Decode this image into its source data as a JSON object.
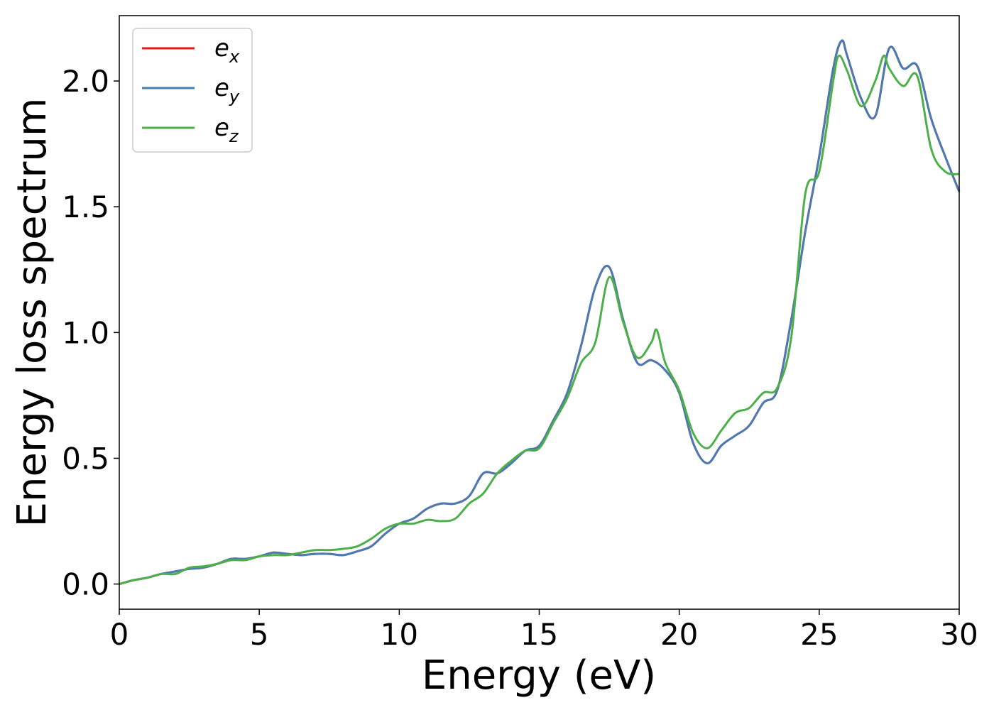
{
  "chart_data": {
    "type": "line",
    "title": "",
    "xlabel": "Energy (eV)",
    "ylabel": "Energy loss spectrum",
    "xlim": [
      0,
      30
    ],
    "ylim": [
      -0.1,
      2.26
    ],
    "xticks": [
      0,
      5,
      10,
      15,
      20,
      25,
      30
    ],
    "xtick_labels": [
      "0",
      "5",
      "10",
      "15",
      "20",
      "25",
      "30"
    ],
    "yticks": [
      0.0,
      0.5,
      1.0,
      1.5,
      2.0
    ],
    "ytick_labels": [
      "0.0",
      "0.5",
      "1.0",
      "1.5",
      "2.0"
    ],
    "grid": false,
    "legend_position": "top-left",
    "series": [
      {
        "name": "e_x",
        "legend_base": "e",
        "legend_sub": "x",
        "color": "#e41a1c",
        "x": [
          0,
          0.5,
          1,
          1.5,
          2,
          2.5,
          3,
          3.5,
          4,
          4.5,
          5,
          5.5,
          6,
          6.5,
          7,
          7.5,
          8,
          8.5,
          9,
          9.5,
          10,
          10.5,
          11,
          11.5,
          12,
          12.5,
          13,
          13.5,
          14,
          14.5,
          15,
          15.5,
          16,
          16.5,
          17,
          17.5,
          18,
          18.5,
          19,
          19.5,
          20,
          20.5,
          21,
          21.5,
          22,
          22.5,
          23,
          23.5,
          24,
          24.5,
          25,
          25.5,
          25.8,
          26,
          26.5,
          27,
          27.5,
          28,
          28.5,
          29,
          29.5,
          30
        ],
        "y": [
          0.0,
          0.015,
          0.025,
          0.04,
          0.05,
          0.06,
          0.065,
          0.08,
          0.1,
          0.1,
          0.11,
          0.125,
          0.12,
          0.115,
          0.12,
          0.12,
          0.115,
          0.13,
          0.15,
          0.2,
          0.24,
          0.26,
          0.3,
          0.32,
          0.32,
          0.35,
          0.44,
          0.44,
          0.48,
          0.53,
          0.55,
          0.65,
          0.76,
          0.95,
          1.18,
          1.26,
          1.05,
          0.88,
          0.89,
          0.85,
          0.76,
          0.56,
          0.48,
          0.55,
          0.59,
          0.63,
          0.72,
          0.77,
          1.05,
          1.4,
          1.7,
          2.05,
          2.16,
          2.1,
          1.93,
          1.86,
          2.13,
          2.05,
          2.06,
          1.85,
          1.7,
          1.56
        ]
      },
      {
        "name": "e_y",
        "legend_base": "e",
        "legend_sub": "y",
        "color": "#4a7bb3",
        "x": [
          0,
          0.5,
          1,
          1.5,
          2,
          2.5,
          3,
          3.5,
          4,
          4.5,
          5,
          5.5,
          6,
          6.5,
          7,
          7.5,
          8,
          8.5,
          9,
          9.5,
          10,
          10.5,
          11,
          11.5,
          12,
          12.5,
          13,
          13.5,
          14,
          14.5,
          15,
          15.5,
          16,
          16.5,
          17,
          17.5,
          18,
          18.5,
          19,
          19.5,
          20,
          20.5,
          21,
          21.5,
          22,
          22.5,
          23,
          23.5,
          24,
          24.5,
          25,
          25.5,
          25.8,
          26,
          26.5,
          27,
          27.5,
          28,
          28.5,
          29,
          29.5,
          30
        ],
        "y": [
          0.0,
          0.015,
          0.025,
          0.04,
          0.05,
          0.06,
          0.065,
          0.08,
          0.1,
          0.1,
          0.11,
          0.125,
          0.12,
          0.115,
          0.12,
          0.12,
          0.115,
          0.13,
          0.15,
          0.2,
          0.24,
          0.26,
          0.3,
          0.32,
          0.32,
          0.35,
          0.44,
          0.44,
          0.48,
          0.53,
          0.55,
          0.65,
          0.76,
          0.95,
          1.18,
          1.26,
          1.05,
          0.88,
          0.89,
          0.85,
          0.76,
          0.56,
          0.48,
          0.55,
          0.59,
          0.63,
          0.72,
          0.77,
          1.05,
          1.4,
          1.7,
          2.05,
          2.16,
          2.1,
          1.93,
          1.86,
          2.13,
          2.05,
          2.06,
          1.85,
          1.7,
          1.56
        ]
      },
      {
        "name": "e_z",
        "legend_base": "e",
        "legend_sub": "z",
        "color": "#4daf4a",
        "x": [
          0,
          0.5,
          1,
          1.5,
          2,
          2.5,
          3,
          3.5,
          4,
          4.5,
          5,
          5.5,
          6,
          6.5,
          7,
          7.5,
          8,
          8.5,
          9,
          9.5,
          10,
          10.5,
          11,
          11.5,
          12,
          12.5,
          13,
          13.5,
          14,
          14.5,
          15,
          15.5,
          16,
          16.5,
          17,
          17.5,
          18,
          18.5,
          19,
          19.2,
          19.5,
          20,
          20.5,
          21,
          21.5,
          22,
          22.5,
          23,
          23.5,
          24,
          24.5,
          25,
          25.5,
          25.7,
          26,
          26.5,
          27,
          27.3,
          27.5,
          28,
          28.5,
          29,
          29.5,
          30
        ],
        "y": [
          0.0,
          0.015,
          0.025,
          0.04,
          0.04,
          0.065,
          0.07,
          0.08,
          0.095,
          0.095,
          0.11,
          0.115,
          0.115,
          0.125,
          0.135,
          0.135,
          0.14,
          0.15,
          0.18,
          0.22,
          0.24,
          0.24,
          0.255,
          0.25,
          0.26,
          0.32,
          0.36,
          0.44,
          0.49,
          0.53,
          0.54,
          0.64,
          0.74,
          0.88,
          0.96,
          1.22,
          1.04,
          0.9,
          0.96,
          1.01,
          0.88,
          0.77,
          0.6,
          0.54,
          0.61,
          0.68,
          0.7,
          0.76,
          0.78,
          0.98,
          1.55,
          1.64,
          2.0,
          2.1,
          2.04,
          1.9,
          2.0,
          2.1,
          2.05,
          1.98,
          2.02,
          1.73,
          1.64,
          1.63
        ]
      }
    ]
  }
}
